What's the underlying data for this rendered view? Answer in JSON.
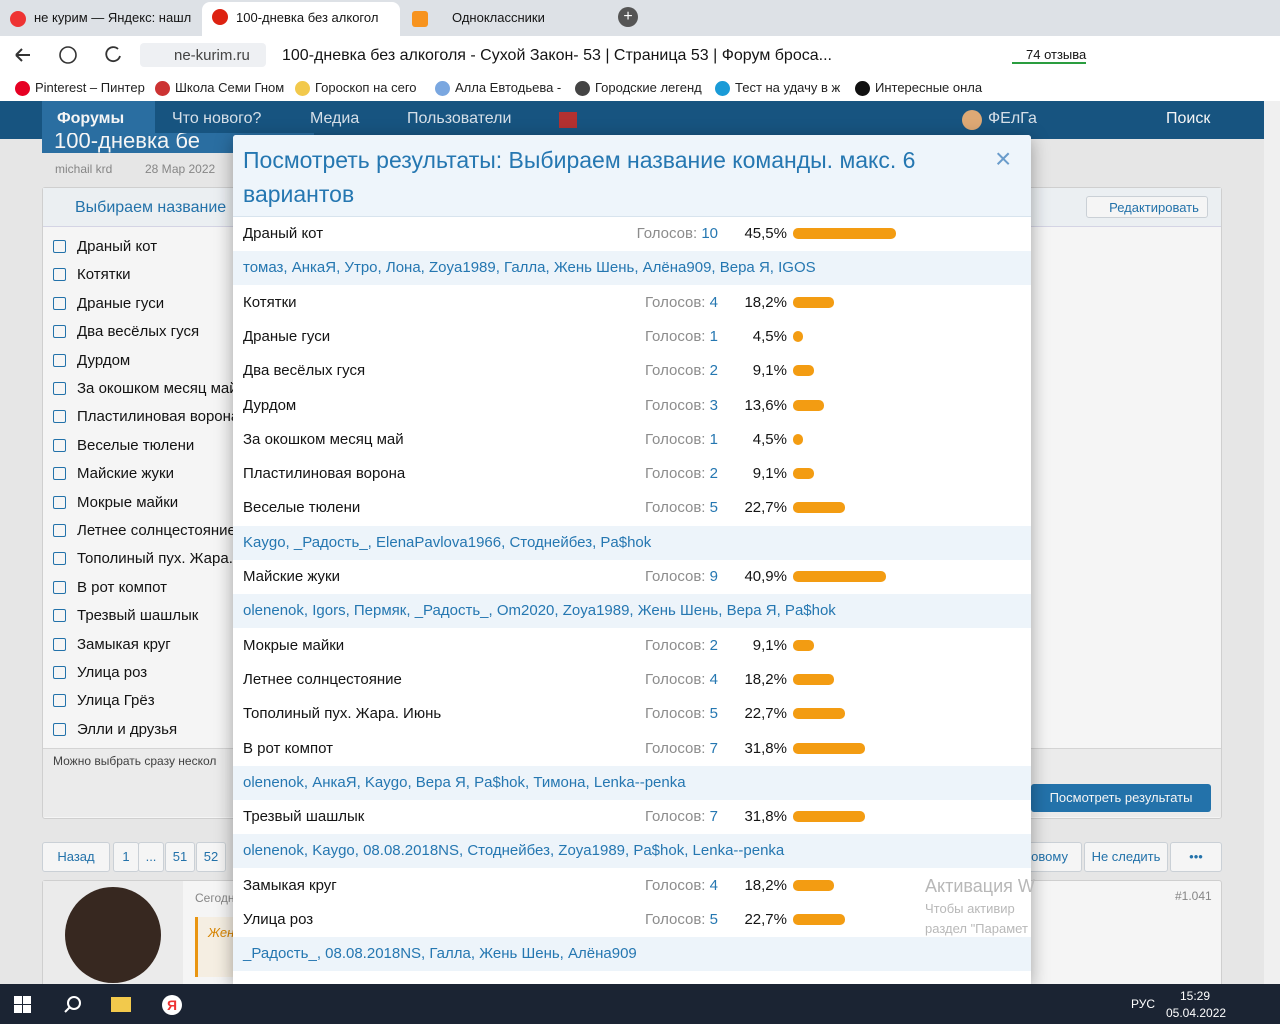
{
  "browser": {
    "tabs": [
      "не курим — Яндекс: нашл",
      "100-дневка без алкогол",
      "Одноклассники"
    ],
    "address": "ne-kurim.ru",
    "page_title": "100-дневка без алкоголя - Сухой Закон- 53 | Страница 53 | Форум броса...",
    "reviews": "74 отзыва",
    "bookmarks": [
      "Pinterest – Пинтер",
      "Школа Семи Гном",
      "Гороскоп на сего",
      "Алла Евтодьева -",
      "Городские легенд",
      "Тест на удачу в ж",
      "Интересные онла"
    ]
  },
  "nav": {
    "items": [
      "Форумы",
      "Что нового?",
      "Медиа",
      "Пользователи"
    ],
    "user": "ФЕлГа",
    "search": "Поиск"
  },
  "thread": {
    "title": "100-дневка бе",
    "author": "michail krd",
    "date": "28 Мар 2022"
  },
  "poll": {
    "title": "Выбираем название",
    "edit": "Редактировать",
    "options": [
      "Драный кот",
      "Котятки",
      "Драные гуси",
      "Два весёлых гуся",
      "Дурдом",
      "За окошком месяц май",
      "Пластилиновая ворона",
      "Веселые тюлени",
      "Майские жуки",
      "Мокрые майки",
      "Летнее солнцестояние",
      "Тополиный пух. Жара. Июнь",
      "В рот компот",
      "Трезвый шашлык",
      "Замыкая круг",
      "Улица роз",
      "Улица Грёз",
      "Элли и друзья"
    ],
    "note": "Можно выбрать сразу нескол",
    "results_button": "Посмотреть результаты"
  },
  "pagination": {
    "prev": "Назад",
    "pages": [
      "1",
      "...",
      "51",
      "52"
    ],
    "new": "новому",
    "unwatch": "Не следить"
  },
  "post": {
    "time": "Сегодн",
    "number": "#1.041",
    "quote": "Женъ"
  },
  "modal": {
    "title": "Посмотреть результаты: Выбираем название команды. макс. 6 вариантов",
    "votes_label": "Голосов:",
    "results": [
      {
        "option": "Драный кот",
        "votes": 10,
        "percent": {
          "value": 45.5,
          "label": "45,5%"
        },
        "voters": "томаз, АнкаЯ, Утро, Лона, Zoya1989, Галла, Жень Шень, Алёна909, Вера Я, IGOS"
      },
      {
        "option": "Котятки",
        "votes": 4,
        "percent": {
          "value": 18.2,
          "label": "18,2%"
        }
      },
      {
        "option": "Драные гуси",
        "votes": 1,
        "percent": {
          "value": 4.5,
          "label": "4,5%"
        }
      },
      {
        "option": "Два весёлых гуся",
        "votes": 2,
        "percent": {
          "value": 9.1,
          "label": "9,1%"
        }
      },
      {
        "option": "Дурдом",
        "votes": 3,
        "percent": {
          "value": 13.6,
          "label": "13,6%"
        }
      },
      {
        "option": "За окошком месяц май",
        "votes": 1,
        "percent": {
          "value": 4.5,
          "label": "4,5%"
        }
      },
      {
        "option": "Пластилиновая ворона",
        "votes": 2,
        "percent": {
          "value": 9.1,
          "label": "9,1%"
        }
      },
      {
        "option": "Веселые тюлени",
        "votes": 5,
        "percent": {
          "value": 22.7,
          "label": "22,7%"
        },
        "voters": "Kaygo, _Радость_, ElenaPavlova1966, Стоднейбез, Pa$hok"
      },
      {
        "option": "Майские жуки",
        "votes": 9,
        "percent": {
          "value": 40.9,
          "label": "40,9%"
        },
        "voters": "olenenok, Igors, Пермяк, _Радость_, Om2020, Zoya1989, Жень Шень, Вера Я, Pa$hok"
      },
      {
        "option": "Мокрые майки",
        "votes": 2,
        "percent": {
          "value": 9.1,
          "label": "9,1%"
        }
      },
      {
        "option": "Летнее солнцестояние",
        "votes": 4,
        "percent": {
          "value": 18.2,
          "label": "18,2%"
        }
      },
      {
        "option": "Тополиный пух. Жара. Июнь",
        "votes": 5,
        "percent": {
          "value": 22.7,
          "label": "22,7%"
        }
      },
      {
        "option": "В рот компот",
        "votes": 7,
        "percent": {
          "value": 31.8,
          "label": "31,8%"
        },
        "voters": "olenenok, АнкаЯ, Kaygo, Вера Я, Pa$hok, Тимона, Lenka--penka"
      },
      {
        "option": "Трезвый шашлык",
        "votes": 7,
        "percent": {
          "value": 31.8,
          "label": "31,8%"
        },
        "voters": "olenenok, Kaygo, 08.08.2018NS, Стоднейбез, Zoya1989, Pa$hok, Lenka--penka"
      },
      {
        "option": "Замыкая круг",
        "votes": 4,
        "percent": {
          "value": 18.2,
          "label": "18,2%"
        }
      },
      {
        "option": "Улица роз",
        "votes": 5,
        "percent": {
          "value": 22.7,
          "label": "22,7%"
        },
        "voters": "_Радость_, 08.08.2018NS, Галла, Жень Шень, Алёна909"
      }
    ]
  },
  "watermark": [
    "Активация W",
    "Чтобы активир",
    "раздел \"Парамет"
  ],
  "taskbar": {
    "language": "РУС",
    "time": "15:29",
    "date": "05.04.2022"
  }
}
